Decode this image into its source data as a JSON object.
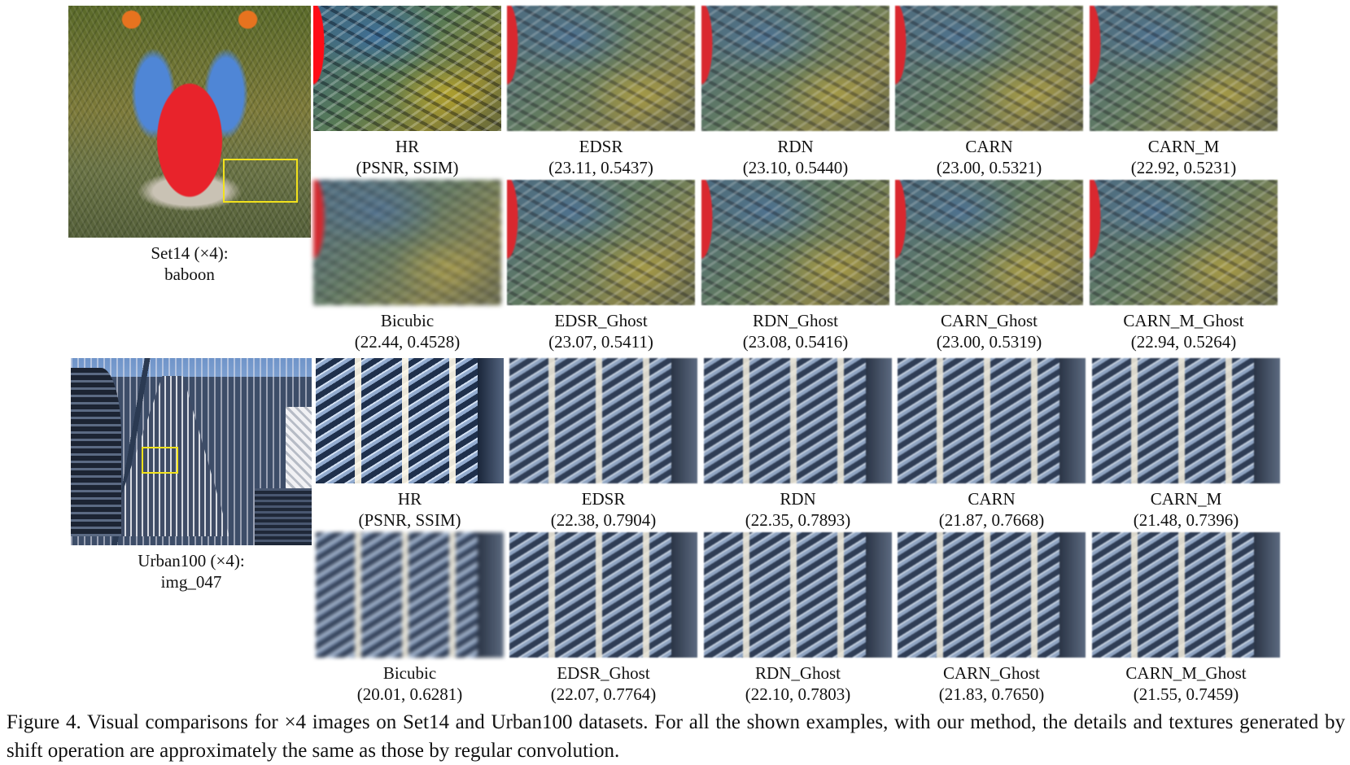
{
  "overview": {
    "baboon": {
      "line1": "Set14 (×4):",
      "line2": "baboon"
    },
    "urban": {
      "line1": "Urban100 (×4):",
      "line2": "img_047"
    }
  },
  "baboon_rows": [
    [
      {
        "name": "HR",
        "metrics": "(PSNR, SSIM)"
      },
      {
        "name": "EDSR",
        "metrics": "(23.11, 0.5437)"
      },
      {
        "name": "RDN",
        "metrics": "(23.10, 0.5440)"
      },
      {
        "name": "CARN",
        "metrics": "(23.00, 0.5321)"
      },
      {
        "name": "CARN_M",
        "metrics": "(22.92, 0.5231)"
      }
    ],
    [
      {
        "name": "Bicubic",
        "metrics": "(22.44, 0.4528)"
      },
      {
        "name": "EDSR_Ghost",
        "metrics": "(23.07, 0.5411)"
      },
      {
        "name": "RDN_Ghost",
        "metrics": "(23.08, 0.5416)"
      },
      {
        "name": "CARN_Ghost",
        "metrics": "(23.00, 0.5319)"
      },
      {
        "name": "CARN_M_Ghost",
        "metrics": "(22.94, 0.5264)"
      }
    ]
  ],
  "urban_rows": [
    [
      {
        "name": "HR",
        "metrics": "(PSNR, SSIM)"
      },
      {
        "name": "EDSR",
        "metrics": "(22.38, 0.7904)"
      },
      {
        "name": "RDN",
        "metrics": "(22.35, 0.7893)"
      },
      {
        "name": "CARN",
        "metrics": "(21.87, 0.7668)"
      },
      {
        "name": "CARN_M",
        "metrics": "(21.48, 0.7396)"
      }
    ],
    [
      {
        "name": "Bicubic",
        "metrics": "(20.01, 0.6281)"
      },
      {
        "name": "EDSR_Ghost",
        "metrics": "(22.07, 0.7764)"
      },
      {
        "name": "RDN_Ghost",
        "metrics": "(22.10, 0.7803)"
      },
      {
        "name": "CARN_Ghost",
        "metrics": "(21.83, 0.7650)"
      },
      {
        "name": "CARN_M_Ghost",
        "metrics": "(21.55, 0.7459)"
      }
    ]
  ],
  "caption": "Figure 4.   Visual comparisons for ×4 images on Set14 and Urban100 datasets. For all the shown examples, with our method, the details and textures generated by shift operation are approximately the same as those by regular convolution.",
  "colors": {
    "highlight_box": "#f2e21c"
  }
}
